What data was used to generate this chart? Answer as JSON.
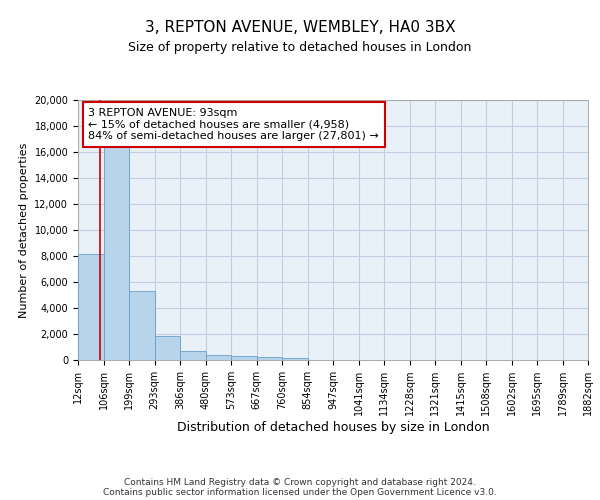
{
  "title": "3, REPTON AVENUE, WEMBLEY, HA0 3BX",
  "subtitle": "Size of property relative to detached houses in London",
  "xlabel": "Distribution of detached houses by size in London",
  "ylabel": "Number of detached properties",
  "bin_edges": [
    12,
    106,
    199,
    293,
    386,
    480,
    573,
    667,
    760,
    854,
    947,
    1041,
    1134,
    1228,
    1321,
    1415,
    1508,
    1602,
    1695,
    1789,
    1882
  ],
  "bar_heights": [
    8150,
    16600,
    5300,
    1850,
    700,
    350,
    280,
    230,
    190,
    0,
    0,
    0,
    0,
    0,
    0,
    0,
    0,
    0,
    0,
    0
  ],
  "bar_color": "#b8d4ea",
  "bar_edge_color": "#6aa0c8",
  "grid_color": "#c0d0e0",
  "bg_color": "#e8f0f8",
  "property_line_x": 93,
  "property_line_color": "#cc0000",
  "annotation_text": "3 REPTON AVENUE: 93sqm\n← 15% of detached houses are smaller (4,958)\n84% of semi-detached houses are larger (27,801) →",
  "annotation_box_color": "#cc0000",
  "ylim": [
    0,
    20000
  ],
  "yticks": [
    0,
    2000,
    4000,
    6000,
    8000,
    10000,
    12000,
    14000,
    16000,
    18000,
    20000
  ],
  "footer_text": "Contains HM Land Registry data © Crown copyright and database right 2024.\nContains public sector information licensed under the Open Government Licence v3.0.",
  "tick_labels": [
    "12sqm",
    "106sqm",
    "199sqm",
    "293sqm",
    "386sqm",
    "480sqm",
    "573sqm",
    "667sqm",
    "760sqm",
    "854sqm",
    "947sqm",
    "1041sqm",
    "1134sqm",
    "1228sqm",
    "1321sqm",
    "1415sqm",
    "1508sqm",
    "1602sqm",
    "1695sqm",
    "1789sqm",
    "1882sqm"
  ],
  "title_fontsize": 11,
  "subtitle_fontsize": 9,
  "ylabel_fontsize": 8,
  "xlabel_fontsize": 9,
  "tick_fontsize": 7,
  "footer_fontsize": 6.5,
  "annotation_fontsize": 8
}
